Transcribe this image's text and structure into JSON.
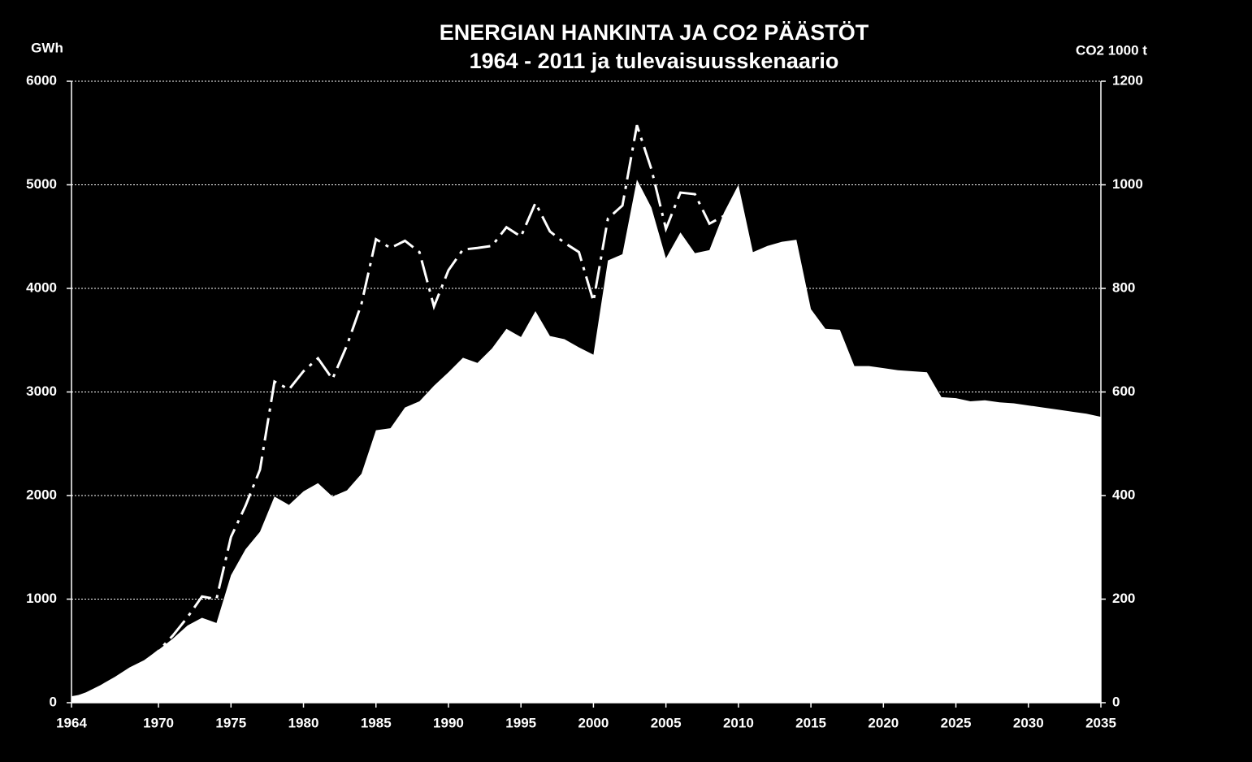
{
  "chart_data": {
    "type": "area",
    "title": "ENERGIAN HANKINTA  JA CO2 PÄÄSTÖT",
    "subtitle": "1964 - 2011 ja tulevaisuusskenaario",
    "y_label": "GWh",
    "y2_label": "CO2 1000 t",
    "x": [
      1964,
      1965,
      1966,
      1967,
      1968,
      1969,
      1970,
      1971,
      1972,
      1973,
      1974,
      1975,
      1976,
      1977,
      1978,
      1979,
      1980,
      1981,
      1982,
      1983,
      1984,
      1985,
      1986,
      1987,
      1988,
      1989,
      1990,
      1991,
      1992,
      1993,
      1994,
      1995,
      1996,
      1997,
      1998,
      1999,
      2000,
      2001,
      2002,
      2003,
      2004,
      2005,
      2006,
      2007,
      2008,
      2009,
      2010,
      2011,
      2012,
      2013,
      2014,
      2015,
      2016,
      2017,
      2018,
      2019,
      2020,
      2021,
      2022,
      2023,
      2024,
      2025,
      2026,
      2027,
      2028,
      2029,
      2030,
      2031,
      2032,
      2033,
      2034,
      2035
    ],
    "series": [
      {
        "type": "area",
        "color": "#ffffff",
        "values": [
          50,
          100,
          170,
          250,
          340,
          410,
          510,
          620,
          745,
          820,
          770,
          1230,
          1480,
          1650,
          1990,
          1910,
          2040,
          2120,
          1990,
          2050,
          2210,
          2630,
          2650,
          2850,
          2910,
          3060,
          3190,
          3330,
          3280,
          3420,
          3610,
          3530,
          3780,
          3540,
          3510,
          3430,
          3360,
          4270,
          4330,
          5050,
          4780,
          4290,
          4540,
          4340,
          4370,
          4730,
          5000,
          4350,
          4410,
          4450,
          4470,
          3800,
          3610,
          3600,
          3250,
          3250,
          3230,
          3210,
          3200,
          3190,
          2950,
          2940,
          2910,
          2920,
          2900,
          2890,
          2870,
          2850,
          2830,
          2810,
          2790,
          2760
        ]
      },
      {
        "type": "line",
        "axis": "y2",
        "color": "#ffffff",
        "dash": "28 8 4 8",
        "values": [
          10,
          15,
          28,
          45,
          62,
          78,
          100,
          130,
          165,
          205,
          200,
          320,
          380,
          450,
          620,
          605,
          640,
          665,
          625,
          690,
          770,
          895,
          878,
          892,
          870,
          765,
          835,
          875,
          878,
          882,
          918,
          900,
          965,
          910,
          888,
          870,
          775,
          935,
          960,
          1115,
          1030,
          915,
          985,
          982,
          925,
          940,
          975,
          null,
          null,
          null,
          null,
          null,
          null,
          null,
          null,
          null,
          null,
          null,
          null,
          null,
          null,
          null,
          null,
          null,
          null,
          null,
          null,
          null,
          null,
          null,
          null,
          null
        ]
      }
    ],
    "xlim": [
      1964,
      2035
    ],
    "xticks": [
      1964,
      1970,
      1975,
      1980,
      1985,
      1990,
      1995,
      2000,
      2005,
      2010,
      2015,
      2020,
      2025,
      2030,
      2035
    ],
    "ylim": [
      0,
      6000
    ],
    "yticks": [
      0,
      1000,
      2000,
      3000,
      4000,
      5000,
      6000
    ],
    "y2lim": [
      0,
      1200
    ],
    "y2ticks": [
      0,
      200,
      400,
      600,
      800,
      1000,
      1200
    ],
    "grid": true
  }
}
